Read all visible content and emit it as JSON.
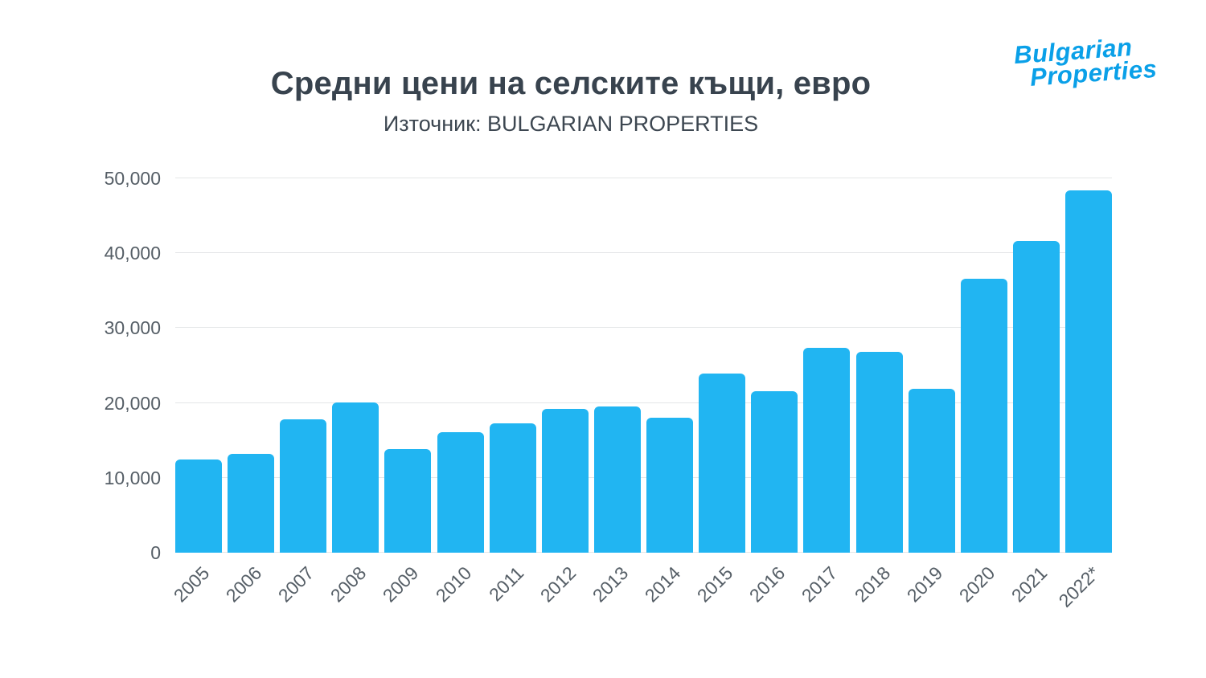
{
  "header": {
    "title": "Средни цени на селските къщи, евро",
    "subtitle": "Източник: BULGARIAN PROPERTIES"
  },
  "logo": {
    "line1": "Bulgarian",
    "line2": "Properties"
  },
  "colors": {
    "bar": "#21b5f2",
    "logo": "#0aa0e8",
    "title": "#38434e",
    "subtitle": "#3d4751",
    "tick_text": "#555e66",
    "gridline": "#e4e6e8",
    "background": "#ffffff"
  },
  "chart_data": {
    "type": "bar",
    "title": "Средни цени на селските къщи, евро",
    "subtitle": "Източник: BULGARIAN PROPERTIES",
    "categories": [
      "2005",
      "2006",
      "2007",
      "2008",
      "2009",
      "2010",
      "2011",
      "2012",
      "2013",
      "2014",
      "2015",
      "2016",
      "2017",
      "2018",
      "2019",
      "2020",
      "2021",
      "2022*"
    ],
    "values": [
      12500,
      13200,
      17800,
      20100,
      13800,
      16100,
      17300,
      19200,
      19500,
      18000,
      23900,
      21600,
      27400,
      26800,
      21900,
      36600,
      41600,
      48400
    ],
    "xlabel": "",
    "ylabel": "",
    "ylim": [
      0,
      50000
    ],
    "yticks": [
      0,
      10000,
      20000,
      30000,
      40000,
      50000
    ],
    "ytick_labels": [
      "0",
      "10,000",
      "20,000",
      "30,000",
      "40,000",
      "50,000"
    ],
    "grid": "horizontal",
    "legend": "none",
    "bar_color": "#21b5f2"
  }
}
